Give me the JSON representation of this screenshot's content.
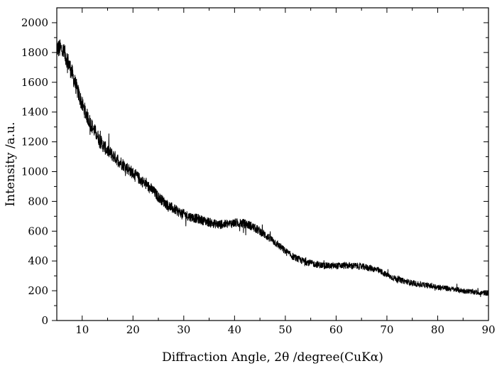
{
  "chart_data": {
    "type": "line",
    "title": "",
    "xlabel": "Diffraction Angle, 2θ /degree(CuKα)",
    "ylabel": "Intensity /a.u.",
    "xlim": [
      5,
      90
    ],
    "ylim": [
      0,
      2100
    ],
    "x_ticks": [
      10,
      20,
      30,
      40,
      50,
      60,
      70,
      80,
      90
    ],
    "y_ticks": [
      0,
      200,
      400,
      600,
      800,
      1000,
      1200,
      1400,
      1600,
      1800,
      2000
    ],
    "grid": false,
    "legend": "none",
    "line_color": "#000000",
    "series": [
      {
        "x": [
          5,
          6,
          7,
          8,
          9,
          10,
          11,
          12,
          13,
          14,
          15,
          16,
          17,
          18,
          19,
          20,
          21,
          22,
          23,
          24,
          25,
          26,
          27,
          28,
          29,
          30,
          31,
          32,
          33,
          34,
          35,
          36,
          37,
          38,
          39,
          40,
          41,
          42,
          43,
          44,
          45,
          46,
          47,
          48,
          49,
          50,
          51,
          52,
          53,
          54,
          55,
          56,
          57,
          58,
          59,
          60,
          61,
          62,
          63,
          64,
          65,
          66,
          67,
          68,
          69,
          70,
          71,
          72,
          73,
          74,
          75,
          76,
          77,
          78,
          79,
          80,
          81,
          82,
          83,
          84,
          85,
          86,
          87,
          88,
          89,
          90
        ],
        "values": [
          1830,
          1820,
          1760,
          1660,
          1550,
          1450,
          1370,
          1300,
          1240,
          1180,
          1140,
          1110,
          1080,
          1050,
          1020,
          990,
          960,
          930,
          900,
          870,
          830,
          800,
          770,
          750,
          730,
          715,
          700,
          690,
          680,
          670,
          660,
          650,
          645,
          645,
          650,
          655,
          655,
          650,
          640,
          620,
          600,
          575,
          550,
          525,
          495,
          465,
          440,
          420,
          405,
          395,
          385,
          378,
          372,
          368,
          366,
          367,
          368,
          369,
          368,
          366,
          362,
          357,
          350,
          340,
          325,
          305,
          290,
          278,
          268,
          260,
          252,
          245,
          240,
          235,
          230,
          225,
          220,
          215,
          210,
          205,
          200,
          195,
          192,
          188,
          185,
          183
        ]
      }
    ]
  }
}
